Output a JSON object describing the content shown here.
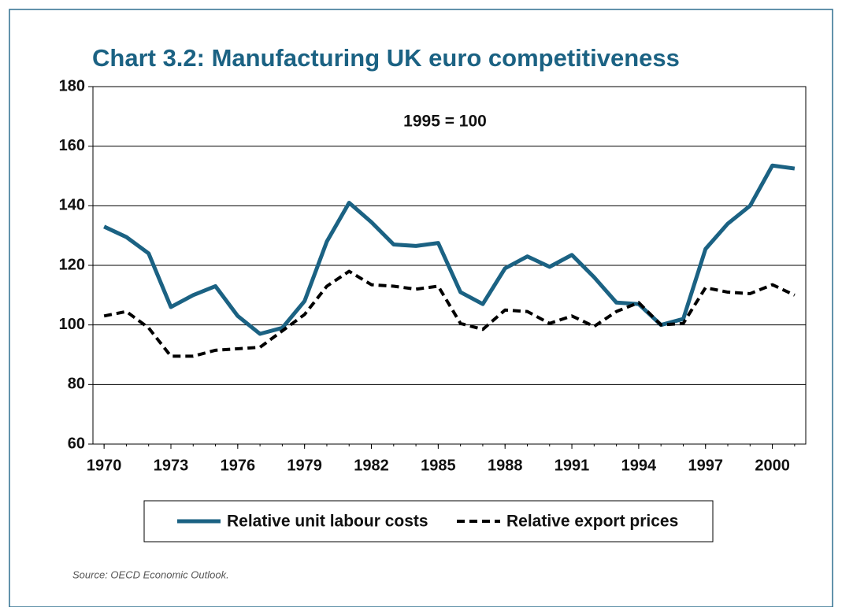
{
  "chart_data": {
    "type": "line",
    "title": "Chart 3.2: Manufacturing UK euro competitiveness",
    "annotation": "1995 = 100",
    "source": "Source: OECD Economic Outlook.",
    "x": [
      1970,
      1971,
      1972,
      1973,
      1974,
      1975,
      1976,
      1977,
      1978,
      1979,
      1980,
      1981,
      1982,
      1983,
      1984,
      1985,
      1986,
      1987,
      1988,
      1989,
      1990,
      1991,
      1992,
      1993,
      1994,
      1995,
      1996,
      1997,
      1998,
      1999,
      2000,
      2001
    ],
    "series": [
      {
        "name": "Relative unit labour costs",
        "color": "#1b6283",
        "dash": false,
        "values": [
          133,
          129.5,
          124,
          106,
          110,
          113,
          103,
          97,
          99,
          108,
          128,
          141,
          134.5,
          127,
          126.5,
          127.5,
          111,
          107,
          119,
          123,
          119.5,
          123.5,
          116,
          107.5,
          107,
          100,
          102,
          125.5,
          134,
          140,
          153.5,
          152.5
        ]
      },
      {
        "name": "Relative export prices",
        "color": "#000000",
        "dash": true,
        "values": [
          103,
          104.5,
          99,
          89.5,
          89.5,
          91.5,
          92,
          92.5,
          98,
          103.5,
          113,
          118,
          113.5,
          113,
          112,
          113,
          100.5,
          98.5,
          105,
          104.5,
          100.5,
          103,
          99.5,
          104.5,
          107.5,
          100,
          100.5,
          112.5,
          111,
          110.5,
          113.5,
          110
        ]
      }
    ],
    "xlim": [
      1969.5,
      2001.5
    ],
    "xticks": [
      1970,
      1973,
      1976,
      1979,
      1982,
      1985,
      1988,
      1991,
      1994,
      1997,
      2000
    ],
    "ylim": [
      60,
      180
    ],
    "yticks": [
      60,
      80,
      100,
      120,
      140,
      160,
      180
    ],
    "grid": true
  }
}
